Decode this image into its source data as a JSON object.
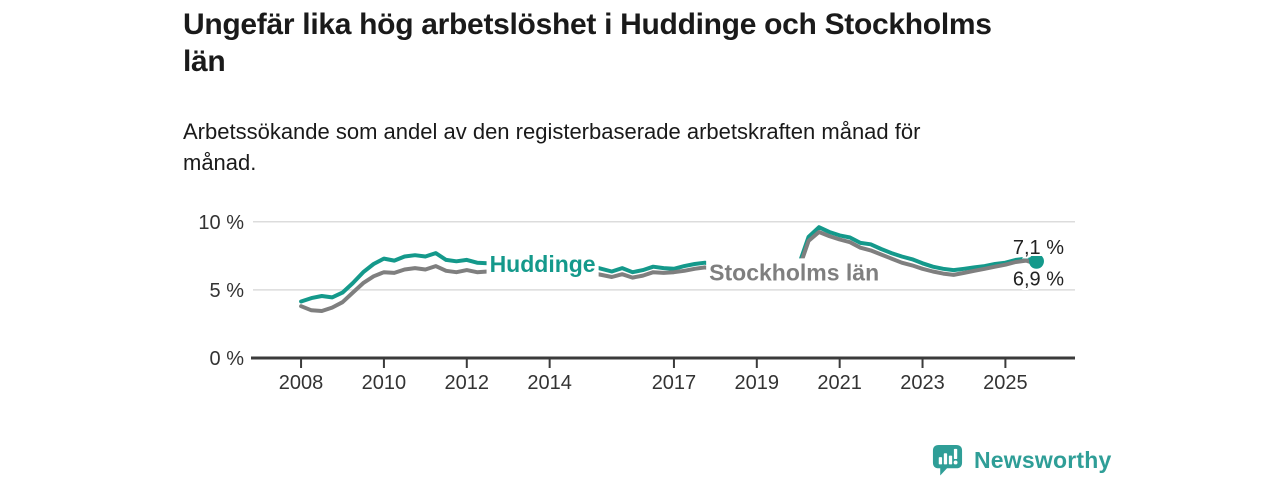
{
  "header": {
    "title": "Ungefär lika hög arbetslöshet i Huddinge och Stockholms län",
    "title_lines": [
      "Ungefär lika hög arbetslöshet i Huddinge och Stockholms",
      "län"
    ],
    "subtitle": "Arbetssökande som andel av den registerbaserade arbetskraften månad för månad.",
    "subtitle_lines": [
      "Arbetssökande som andel av den registerbaserade arbetskraften månad för",
      "månad."
    ]
  },
  "chart_data": {
    "type": "line",
    "title": "Ungefär lika hög arbetslöshet i Huddinge och Stockholms län",
    "xlabel": "",
    "ylabel": "",
    "unit": "%",
    "grid": "horizontal",
    "legend_position": "inline-labels",
    "xlim": [
      2006.84,
      2026.68
    ],
    "ylim": [
      0,
      11.6
    ],
    "y_ticks": [
      {
        "label": "10 %",
        "value": 10
      },
      {
        "label": "5 %",
        "value": 5
      },
      {
        "label": "0 %",
        "value": 0
      }
    ],
    "x_ticks": [
      {
        "label": "2008",
        "value": 2008
      },
      {
        "label": "2010",
        "value": 2010
      },
      {
        "label": "2012",
        "value": 2012
      },
      {
        "label": "2014",
        "value": 2014
      },
      {
        "label": "2017",
        "value": 2017
      },
      {
        "label": "2019",
        "value": 2019
      },
      {
        "label": "2021",
        "value": 2021
      },
      {
        "label": "2023",
        "value": 2023
      },
      {
        "label": "2025",
        "value": 2025
      }
    ],
    "x_start": 2008.0,
    "x_step": 0.25,
    "series": [
      {
        "name": "Huddinge",
        "color": "#14998b",
        "end_dot": true,
        "last_value_label": "7,1 %",
        "values": [
          4.15,
          4.4,
          4.55,
          4.45,
          4.8,
          5.5,
          6.3,
          6.9,
          7.3,
          7.15,
          7.45,
          7.55,
          7.45,
          7.7,
          7.2,
          7.1,
          7.2,
          7.0,
          6.95,
          7.05,
          6.9,
          6.75,
          6.65,
          6.6,
          6.5,
          6.45,
          6.55,
          6.65,
          6.75,
          6.55,
          6.35,
          6.6,
          6.3,
          6.45,
          6.7,
          6.6,
          6.55,
          6.75,
          6.9,
          7.0,
          6.8,
          6.6,
          6.45,
          6.35,
          6.25,
          6.2,
          6.3,
          6.45,
          6.7,
          8.9,
          9.6,
          9.25,
          9.0,
          8.85,
          8.45,
          8.35,
          8.0,
          7.7,
          7.45,
          7.25,
          6.95,
          6.7,
          6.55,
          6.45,
          6.55,
          6.65,
          6.75,
          6.9,
          7.0,
          7.2,
          7.3,
          7.1
        ]
      },
      {
        "name": "Stockholms län",
        "color": "#7f7f7f",
        "end_dot": false,
        "last_value_label": "6,9 %",
        "values": [
          3.8,
          3.5,
          3.45,
          3.7,
          4.1,
          4.8,
          5.5,
          6.0,
          6.3,
          6.25,
          6.5,
          6.6,
          6.5,
          6.75,
          6.4,
          6.3,
          6.45,
          6.3,
          6.35,
          6.6,
          6.4,
          6.3,
          6.2,
          6.15,
          6.1,
          6.05,
          6.15,
          6.2,
          6.25,
          6.1,
          5.95,
          6.15,
          5.9,
          6.05,
          6.3,
          6.25,
          6.3,
          6.4,
          6.55,
          6.65,
          6.5,
          6.3,
          6.15,
          6.05,
          5.95,
          5.9,
          6.0,
          6.15,
          6.4,
          8.6,
          9.25,
          8.95,
          8.7,
          8.5,
          8.1,
          7.9,
          7.6,
          7.3,
          7.0,
          6.8,
          6.55,
          6.35,
          6.2,
          6.1,
          6.25,
          6.4,
          6.55,
          6.7,
          6.85,
          7.05,
          7.15,
          6.9
        ]
      }
    ],
    "labels": [
      {
        "text": "Huddinge",
        "x": 2012.55,
        "y": 6.33,
        "color": "#14998b",
        "weight": "bold",
        "size": 23,
        "bg": true
      },
      {
        "text": "Stockholms län",
        "x": 2017.85,
        "y": 5.7,
        "color": "#7f7f7f",
        "weight": "bold",
        "size": 23,
        "bg": true
      },
      {
        "text": "7,1 %",
        "x": 2025.18,
        "y": 7.62,
        "color": "#222222",
        "weight": "normal",
        "size": 20,
        "bg": false
      },
      {
        "text": "6,9 %",
        "x": 2025.18,
        "y": 5.32,
        "color": "#222222",
        "weight": "normal",
        "size": 20,
        "bg": false
      }
    ],
    "axis_color": "#3b3b3b",
    "grid_color": "#dcdcdc",
    "tick_label_color": "#333333"
  },
  "footer": {
    "brand_name": "Newsworthy",
    "brand_color": "#2f9e97",
    "logo_icon": "bar-chart-speech-bubble"
  }
}
